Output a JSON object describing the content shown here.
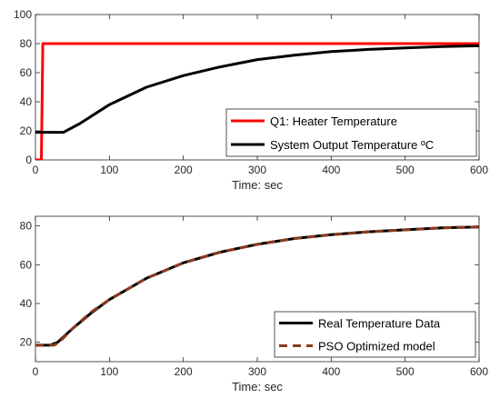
{
  "chart_data": [
    {
      "type": "line",
      "xlabel": "Time: sec",
      "ylabel": "",
      "xlim": [
        0,
        600
      ],
      "ylim": [
        0,
        100
      ],
      "xticks": [
        0,
        100,
        200,
        300,
        400,
        500,
        600
      ],
      "yticks": [
        0,
        20,
        40,
        60,
        80,
        100
      ],
      "grid": false,
      "legend": "bottom-right",
      "series": [
        {
          "name": "Q1: Heater Temperature",
          "color": "#ff0000",
          "style": "solid",
          "x": [
            0,
            8,
            10,
            600
          ],
          "y": [
            0,
            0,
            80,
            80
          ]
        },
        {
          "name": "System Output Temperature ºC",
          "color": "#000000",
          "style": "solid",
          "x": [
            0,
            38,
            60,
            100,
            150,
            200,
            250,
            300,
            350,
            400,
            450,
            500,
            550,
            600
          ],
          "y": [
            19,
            19,
            25,
            38,
            50,
            58,
            64,
            69,
            72,
            74.5,
            76,
            77,
            78,
            78.5
          ]
        }
      ]
    },
    {
      "type": "line",
      "xlabel": "Time: sec",
      "ylabel": "",
      "xlim": [
        0,
        600
      ],
      "ylim": [
        10,
        85
      ],
      "xticks": [
        0,
        100,
        200,
        300,
        400,
        500,
        600
      ],
      "yticks": [
        20,
        40,
        60,
        80
      ],
      "grid": false,
      "legend": "bottom-right",
      "series": [
        {
          "name": "Real Temperature Data",
          "color": "#000000",
          "style": "solid",
          "x": [
            0,
            20,
            30,
            50,
            75,
            100,
            150,
            200,
            250,
            300,
            350,
            400,
            450,
            500,
            550,
            600
          ],
          "y": [
            18.5,
            18.5,
            20,
            27,
            35,
            42,
            53,
            61,
            66.5,
            70.5,
            73.5,
            75.5,
            77,
            78,
            79,
            79.5
          ]
        },
        {
          "name": "PSO Optimized model",
          "color": "#8b3a1e",
          "style": "dashed",
          "x": [
            0,
            25,
            32,
            50,
            75,
            100,
            150,
            200,
            250,
            300,
            350,
            400,
            450,
            500,
            550,
            600
          ],
          "y": [
            18.5,
            18.5,
            20,
            27,
            35.5,
            42,
            53,
            61,
            66.5,
            70.5,
            73.5,
            75.5,
            77,
            78,
            79,
            79.5
          ]
        }
      ]
    }
  ]
}
